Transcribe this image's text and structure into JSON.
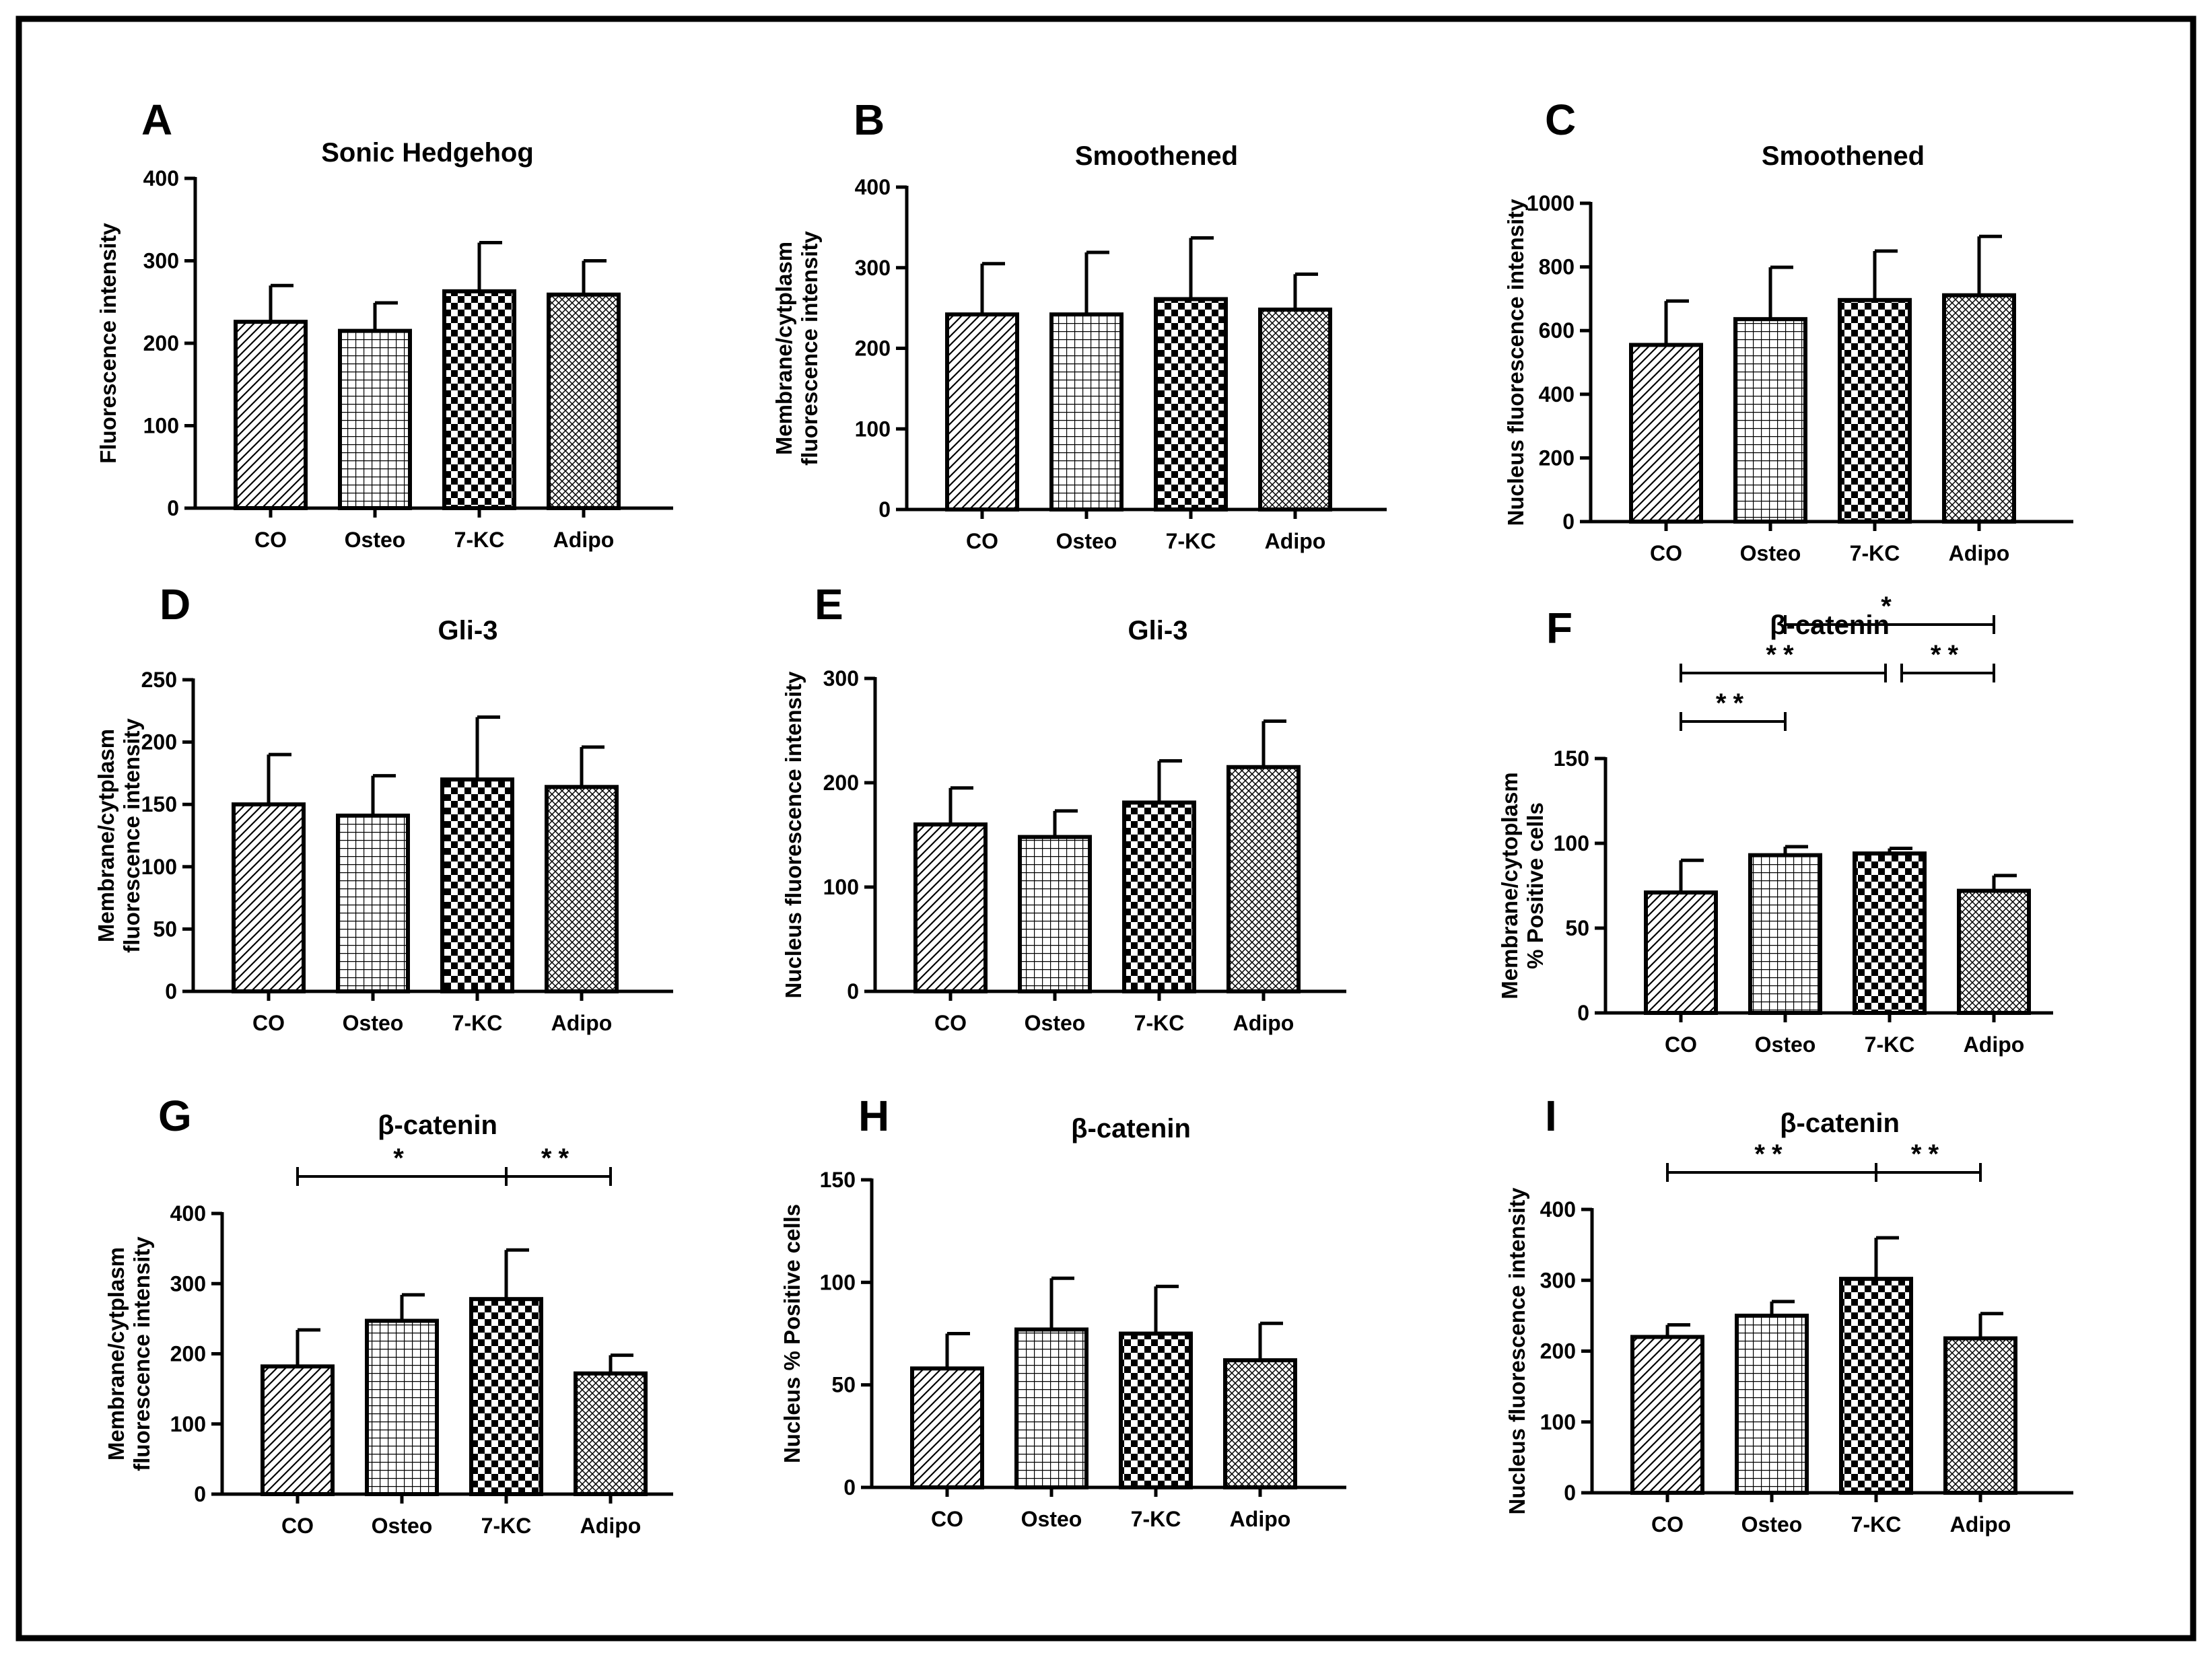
{
  "figure": {
    "colors": {
      "frame": "#000000",
      "background": "#ffffff",
      "ink": "#000000"
    },
    "pattern_names": [
      "diagonal-hatch",
      "square-grid",
      "checkerboard",
      "fine-crosshatch"
    ]
  },
  "chart_data": [
    {
      "panel": "A",
      "type": "bar",
      "title": "Sonic Hedgehog",
      "ylabel": [
        "Fluorescence intensity"
      ],
      "categories": [
        "CO",
        "Osteo",
        "7-KC",
        "Adipo"
      ],
      "values": [
        226,
        215,
        263,
        259
      ],
      "errors": [
        44,
        34,
        59,
        41
      ],
      "ylim": [
        0,
        400
      ],
      "yticks": [
        0,
        100,
        200,
        300,
        400
      ],
      "ytick_labels": [
        "0",
        "100",
        "200",
        "300",
        "400"
      ],
      "significance": []
    },
    {
      "panel": "B",
      "type": "bar",
      "title": "Smoothened",
      "ylabel": [
        "Membrane/cytplasm",
        "fluorescence intensity"
      ],
      "categories": [
        "CO",
        "Osteo",
        "7-KC",
        "Adipo"
      ],
      "values": [
        242,
        242,
        261,
        248
      ],
      "errors": [
        63,
        77,
        76,
        44
      ],
      "ylim": [
        0,
        400
      ],
      "yticks": [
        0,
        100,
        200,
        300,
        400
      ],
      "ytick_labels": [
        "0",
        "100",
        "200",
        "300",
        "400"
      ],
      "significance": []
    },
    {
      "panel": "C",
      "type": "bar",
      "title": "Smoothened",
      "ylabel": [
        "Nucleus fluorescence intensity"
      ],
      "categories": [
        "CO",
        "Osteo",
        "7-KC",
        "Adipo"
      ],
      "values": [
        555,
        636,
        696,
        711
      ],
      "errors": [
        138,
        163,
        154,
        185
      ],
      "ylim": [
        0,
        1000
      ],
      "yticks": [
        0,
        200,
        400,
        600,
        800,
        1000
      ],
      "ytick_labels": [
        "0",
        "200",
        "400",
        "600",
        "800",
        "1000"
      ],
      "significance": []
    },
    {
      "panel": "D",
      "type": "bar",
      "title": "Gli-3",
      "ylabel": [
        "Membrane/cytplasm",
        "fluorescence intensity"
      ],
      "categories": [
        "CO",
        "Osteo",
        "7-KC",
        "Adipo"
      ],
      "values": [
        150,
        141,
        170,
        164
      ],
      "errors": [
        40,
        32,
        50,
        32
      ],
      "ylim": [
        0,
        250
      ],
      "yticks": [
        0,
        50,
        100,
        150,
        200,
        250
      ],
      "ytick_labels": [
        "0",
        "50",
        "100",
        "150",
        "200",
        "250"
      ],
      "significance": []
    },
    {
      "panel": "E",
      "type": "bar",
      "title": "Gli-3",
      "ylabel": [
        "Nucleus fluorescence intensity"
      ],
      "categories": [
        "CO",
        "Osteo",
        "7-KC",
        "Adipo"
      ],
      "values": [
        160,
        148,
        181,
        215
      ],
      "errors": [
        35,
        25,
        40,
        44
      ],
      "ylim": [
        0,
        300
      ],
      "yticks": [
        0,
        100,
        200,
        300
      ],
      "ytick_labels": [
        "0",
        "100",
        "200",
        "300"
      ],
      "significance": []
    },
    {
      "panel": "F",
      "type": "bar",
      "title": "β-catenin",
      "ylabel": [
        "Membrane/cytoplasm",
        "% Positive cells"
      ],
      "categories": [
        "CO",
        "Osteo",
        "7-KC",
        "Adipo"
      ],
      "values": [
        71,
        93,
        94,
        72
      ],
      "errors": [
        19,
        5,
        3,
        9
      ],
      "ylim": [
        0,
        150
      ],
      "yticks": [
        0,
        50,
        100,
        150
      ],
      "ytick_labels": [
        "0",
        "50",
        "100",
        "150"
      ],
      "significance": [
        {
          "from": 1,
          "to": 3,
          "label": "*",
          "level": 3
        },
        {
          "from": 0,
          "to": 2,
          "label": "**",
          "level": 2
        },
        {
          "from": 2,
          "to": 3,
          "label": "**",
          "level": 2
        },
        {
          "from": 0,
          "to": 1,
          "label": "**",
          "level": 1
        }
      ]
    },
    {
      "panel": "G",
      "type": "bar",
      "title": "β-catenin",
      "ylabel": [
        "Membrane/cytplasm",
        "fluorescence intensity"
      ],
      "categories": [
        "CO",
        "Osteo",
        "7-KC",
        "Adipo"
      ],
      "values": [
        182,
        247,
        278,
        172
      ],
      "errors": [
        52,
        37,
        70,
        26
      ],
      "ylim": [
        0,
        400
      ],
      "yticks": [
        0,
        100,
        200,
        300,
        400
      ],
      "ytick_labels": [
        "0",
        "100",
        "200",
        "300",
        "400"
      ],
      "significance": [
        {
          "from": 0,
          "to": 2,
          "label": "*",
          "level": 1
        },
        {
          "from": 2,
          "to": 3,
          "label": "**",
          "level": 1
        }
      ]
    },
    {
      "panel": "H",
      "type": "bar",
      "title": "β-catenin",
      "ylabel": [
        "Nucleus % Positive cells"
      ],
      "categories": [
        "CO",
        "Osteo",
        "7-KC",
        "Adipo"
      ],
      "values": [
        58,
        77,
        75,
        62
      ],
      "errors": [
        17,
        25,
        23,
        18
      ],
      "ylim": [
        0,
        150
      ],
      "yticks": [
        0,
        50,
        100,
        150
      ],
      "ytick_labels": [
        "0",
        "50",
        "100",
        "150"
      ],
      "significance": []
    },
    {
      "panel": "I",
      "type": "bar",
      "title": "β-catenin",
      "ylabel": [
        "Nucleus fluorescence intensity"
      ],
      "categories": [
        "CO",
        "Osteo",
        "7-KC",
        "Adipo"
      ],
      "values": [
        220,
        250,
        302,
        218
      ],
      "errors": [
        17,
        20,
        58,
        35
      ],
      "ylim": [
        0,
        400
      ],
      "yticks": [
        0,
        100,
        200,
        300,
        400
      ],
      "ytick_labels": [
        "0",
        "100",
        "200",
        "300",
        "400"
      ],
      "significance": [
        {
          "from": 0,
          "to": 2,
          "label": "**",
          "level": 1
        },
        {
          "from": 2,
          "to": 3,
          "label": "**",
          "level": 1
        }
      ]
    }
  ]
}
